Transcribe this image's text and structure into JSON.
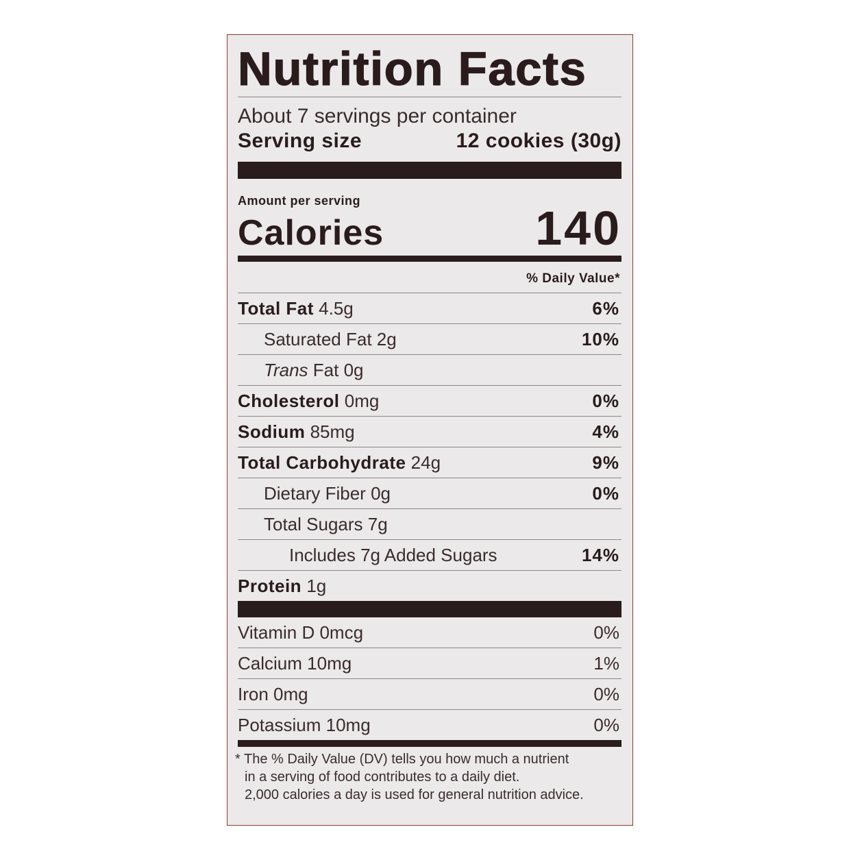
{
  "title": "Nutrition Facts",
  "servings_per_container": "About 7 servings per container",
  "serving_size": {
    "label": "Serving size",
    "value": "12 cookies (30g)"
  },
  "amount_per_serving": "Amount per serving",
  "calories": {
    "label": "Calories",
    "value": "140"
  },
  "daily_value_header": "% Daily Value*",
  "nutrients": [
    {
      "name": "Total Fat",
      "amount": "4.5g",
      "dv": "6%"
    },
    {
      "name": "Saturated Fat",
      "amount": "2g",
      "dv": "10%"
    },
    {
      "name": "Trans",
      "name_suffix": "Fat",
      "amount": "0g",
      "dv": ""
    },
    {
      "name": "Cholesterol",
      "amount": "0mg",
      "dv": "0%"
    },
    {
      "name": "Sodium",
      "amount": "85mg",
      "dv": "4%"
    },
    {
      "name": "Total Carbohydrate",
      "amount": "24g",
      "dv": "9%"
    },
    {
      "name": "Dietary Fiber",
      "amount": "0g",
      "dv": "0%"
    },
    {
      "name": "Total Sugars",
      "amount": "7g",
      "dv": ""
    },
    {
      "name": "Includes 7g Added Sugars",
      "amount": "",
      "dv": "14%"
    },
    {
      "name": "Protein",
      "amount": "1g",
      "dv": ""
    }
  ],
  "vitamins": [
    {
      "name": "Vitamin D",
      "amount": "0mcg",
      "dv": "0%"
    },
    {
      "name": "Calcium",
      "amount": "10mg",
      "dv": "1%"
    },
    {
      "name": "Iron",
      "amount": "0mg",
      "dv": "0%"
    },
    {
      "name": "Potassium",
      "amount": "10mg",
      "dv": "0%"
    }
  ],
  "footnote": [
    "* The % Daily Value (DV) tells you how much a nutrient",
    "in a serving of food contributes to a daily diet.",
    "2,000 calories a day is used for general nutrition advice."
  ],
  "colors": {
    "text": "#2a1c1c",
    "panel": "#ebe9ea",
    "border": "#8a3a30"
  }
}
